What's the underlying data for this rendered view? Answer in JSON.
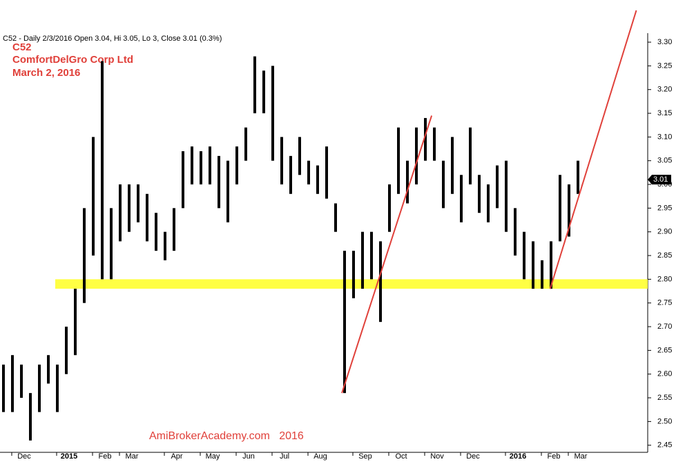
{
  "chart_data": {
    "type": "hilo",
    "header": "C52 - Daily 2/3/2016 Open 3.04, Hi 3.05, Lo 3, Close 3.01 (0.3%)",
    "annotations": [
      "C52",
      "ComfortDelGro Corp Ltd",
      "March 2, 2016"
    ],
    "watermark": "AmiBrokerAcademy.com   2016",
    "categories": [
      null,
      null,
      "Dec",
      null,
      null,
      null,
      null,
      "2015",
      null,
      null,
      null,
      "Feb",
      null,
      null,
      "Mar",
      null,
      null,
      null,
      null,
      "Apr",
      null,
      null,
      null,
      "May",
      null,
      null,
      null,
      "Jun",
      null,
      null,
      null,
      "Jul",
      null,
      null,
      null,
      "Aug",
      null,
      null,
      null,
      null,
      "Sep",
      null,
      null,
      null,
      "Oct",
      null,
      null,
      null,
      "Nov",
      null,
      null,
      null,
      "Dec",
      null,
      null,
      null,
      null,
      "2016",
      null,
      null,
      null,
      "Feb",
      null,
      null,
      "Mar"
    ],
    "series": [
      {
        "color": "#000000",
        "high": [
          2.62,
          2.64,
          2.62,
          2.56,
          2.62,
          2.64,
          2.62,
          2.7,
          2.78,
          2.95,
          3.1,
          3.26,
          2.95,
          3.0,
          3.0,
          3.0,
          2.98,
          2.94,
          2.9,
          2.95,
          3.07,
          3.08,
          3.07,
          3.08,
          3.06,
          3.05,
          3.08,
          3.12,
          3.27,
          3.24,
          3.25,
          3.1,
          3.06,
          3.1,
          3.05,
          3.04,
          3.08,
          2.96,
          2.86,
          2.86,
          2.9,
          2.9,
          2.88,
          3.0,
          3.12,
          3.05,
          3.12,
          3.14,
          3.12,
          3.05,
          3.1,
          3.02,
          3.12,
          3.02,
          3.0,
          3.04,
          3.05,
          2.95,
          2.9,
          2.88,
          2.84,
          2.88,
          3.02,
          3.0,
          3.05
        ],
        "low": [
          2.52,
          2.52,
          2.55,
          2.46,
          2.52,
          2.58,
          2.52,
          2.6,
          2.64,
          2.75,
          2.85,
          2.8,
          2.8,
          2.88,
          2.9,
          2.92,
          2.88,
          2.86,
          2.84,
          2.86,
          2.95,
          3.0,
          3.0,
          3.0,
          2.95,
          2.92,
          3.0,
          3.05,
          3.15,
          3.15,
          3.05,
          3.0,
          2.98,
          3.02,
          3.0,
          2.98,
          2.97,
          2.9,
          2.56,
          2.76,
          2.78,
          2.8,
          2.71,
          2.9,
          2.98,
          2.96,
          3.0,
          3.05,
          3.05,
          2.95,
          2.98,
          2.92,
          3.0,
          2.94,
          2.92,
          2.95,
          2.9,
          2.85,
          2.8,
          2.78,
          2.78,
          2.78,
          2.88,
          2.89,
          2.98
        ]
      }
    ],
    "support_band": [
      2.78,
      2.8
    ],
    "support_color": "#ffff44",
    "trendlines": [
      {
        "color": "#e0403a",
        "x": [
          37.7,
          47.7
        ],
        "y": [
          2.56,
          3.145
        ]
      },
      {
        "color": "#e0403a",
        "x": [
          60.9,
          70.5
        ],
        "y": [
          2.78,
          3.367
        ]
      }
    ],
    "last_price": {
      "value": 3.01,
      "label": "3.01"
    },
    "ylim": [
      2.435,
      3.319
    ],
    "yticks": [
      {
        "value": 2.45,
        "label": "2.45"
      },
      {
        "value": 2.5,
        "label": "2.50"
      },
      {
        "value": 2.55,
        "label": "2.55"
      },
      {
        "value": 2.6,
        "label": "2.60"
      },
      {
        "value": 2.65,
        "label": "2.65"
      },
      {
        "value": 2.7,
        "label": "2.70"
      },
      {
        "value": 2.75,
        "label": "2.75"
      },
      {
        "value": 2.8,
        "label": "2.80"
      },
      {
        "value": 2.85,
        "label": "2.85"
      },
      {
        "value": 2.9,
        "label": "2.90"
      },
      {
        "value": 2.95,
        "label": "2.95"
      },
      {
        "value": 3.0,
        "label": "3.00"
      },
      {
        "value": 3.05,
        "label": "3.05"
      },
      {
        "value": 3.1,
        "label": "3.10"
      },
      {
        "value": 3.15,
        "label": "3.15"
      },
      {
        "value": 3.2,
        "label": "3.20"
      },
      {
        "value": 3.25,
        "label": "3.25"
      },
      {
        "value": 3.3,
        "label": "3.30"
      }
    ]
  }
}
